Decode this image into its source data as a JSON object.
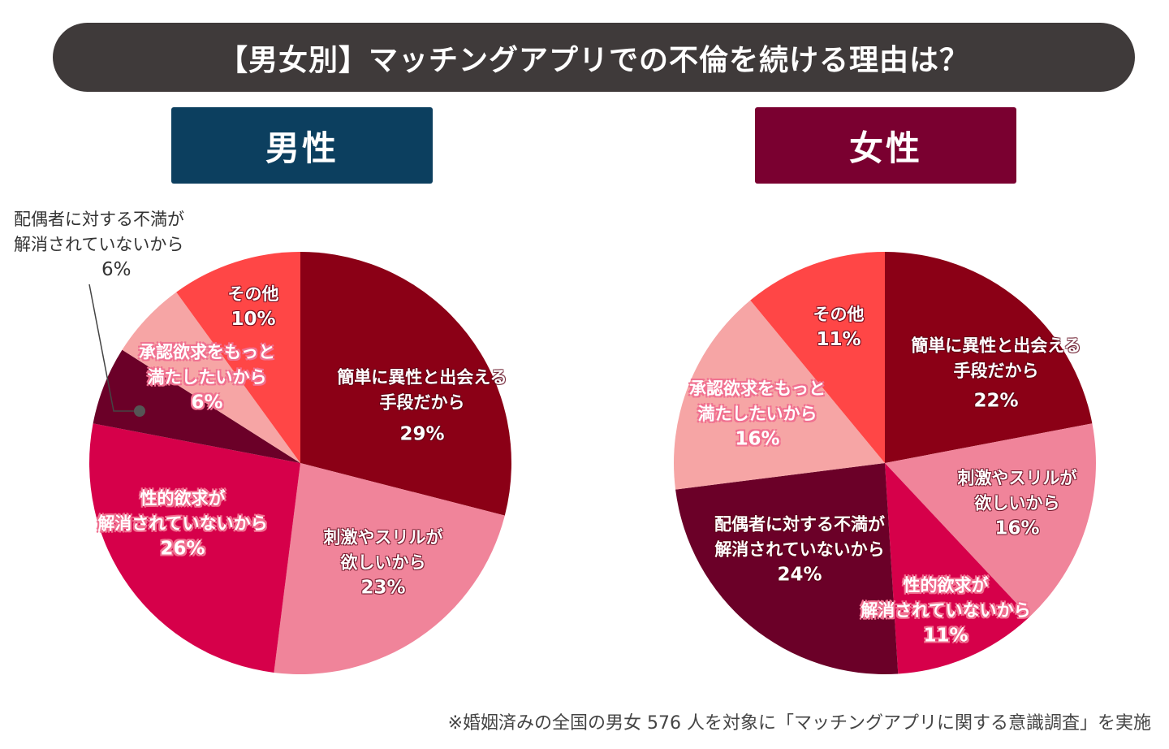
{
  "title": "【男女別】マッチングアプリでの不倫を続ける理由は？",
  "footer": "※婚姻済みの全国の男女 576 人を対象に「マッチングアプリに関する意識調査」を実施",
  "chart_data": [
    {
      "type": "pie",
      "title": "男性",
      "header_color": "#0c3f5f",
      "slices": [
        {
          "label_lines": [
            "簡単に異性と出会える",
            "手段だから"
          ],
          "value": 29,
          "pct": "29%",
          "color": "#8b0016"
        },
        {
          "label_lines": [
            "刺激やスリルが",
            "欲しいから"
          ],
          "value": 23,
          "pct": "23%",
          "color": "#f0849a"
        },
        {
          "label_lines": [
            "性的欲求が",
            "解消されていないから"
          ],
          "value": 26,
          "pct": "26%",
          "color": "#d6004a"
        },
        {
          "label_lines": [
            "配偶者に対する不満が",
            "解消されていないから"
          ],
          "value": 6,
          "pct": "6%",
          "color": "#6b0028"
        },
        {
          "label_lines": [
            "承認欲求をもっと",
            "満たしたいから"
          ],
          "value": 6,
          "pct": "6%",
          "color": "#f6a5a5"
        },
        {
          "label_lines": [
            "その他"
          ],
          "value": 10,
          "pct": "10%",
          "color": "#ff4646"
        }
      ]
    },
    {
      "type": "pie",
      "title": "女性",
      "header_color": "#7a0030",
      "slices": [
        {
          "label_lines": [
            "簡単に異性と出会える",
            "手段だから"
          ],
          "value": 22,
          "pct": "22%",
          "color": "#8b0016"
        },
        {
          "label_lines": [
            "刺激やスリルが",
            "欲しいから"
          ],
          "value": 16,
          "pct": "16%",
          "color": "#f0849a"
        },
        {
          "label_lines": [
            "性的欲求が",
            "解消されていないから"
          ],
          "value": 11,
          "pct": "11%",
          "color": "#d6004a"
        },
        {
          "label_lines": [
            "配偶者に対する不満が",
            "解消されていないから"
          ],
          "value": 24,
          "pct": "24%",
          "color": "#6b0028"
        },
        {
          "label_lines": [
            "承認欲求をもっと",
            "満たしたいから"
          ],
          "value": 16,
          "pct": "16%",
          "color": "#f6a5a5"
        },
        {
          "label_lines": [
            "その他"
          ],
          "value": 11,
          "pct": "11%",
          "color": "#ff4646"
        }
      ]
    }
  ]
}
